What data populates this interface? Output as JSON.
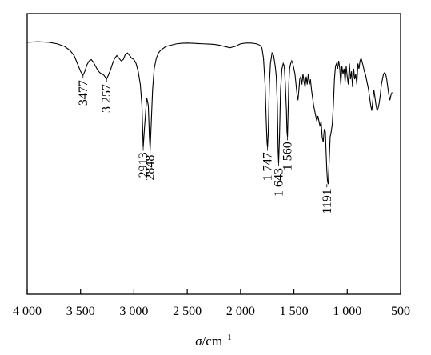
{
  "chart_data": {
    "type": "line",
    "title": "",
    "xlabel": {
      "symbol": "σ",
      "unit": "/cm",
      "exponent": "−1"
    },
    "ylabel": "",
    "xlim": [
      4000,
      500
    ],
    "ylim": [
      0,
      1
    ],
    "x_reversed": true,
    "grid": false,
    "legend": "none",
    "line_color": "#000000",
    "x_ticks": [
      4000,
      3500,
      3000,
      2500,
      2000,
      1500,
      1000,
      500
    ],
    "x_tick_labels": [
      "4 000",
      "3 500",
      "3 000",
      "2 500",
      "2 000",
      "1 500",
      "1 000",
      "500"
    ],
    "series": [
      {
        "x": [
          4000,
          3900,
          3800,
          3720,
          3650,
          3600,
          3560,
          3530,
          3500,
          3477,
          3460,
          3440,
          3420,
          3400,
          3380,
          3360,
          3340,
          3320,
          3300,
          3280,
          3257,
          3240,
          3220,
          3200,
          3180,
          3160,
          3140,
          3120,
          3100,
          3080,
          3060,
          3040,
          3020,
          3000,
          2980,
          2960,
          2940,
          2925,
          2913,
          2900,
          2880,
          2865,
          2855,
          2848,
          2840,
          2825,
          2810,
          2790,
          2770,
          2750,
          2700,
          2650,
          2600,
          2550,
          2500,
          2450,
          2400,
          2350,
          2300,
          2250,
          2200,
          2150,
          2100,
          2050,
          2000,
          1950,
          1900,
          1850,
          1820,
          1800,
          1785,
          1770,
          1760,
          1752,
          1747,
          1740,
          1730,
          1720,
          1705,
          1690,
          1675,
          1665,
          1655,
          1648,
          1643,
          1635,
          1625,
          1612,
          1600,
          1590,
          1580,
          1570,
          1565,
          1560,
          1555,
          1548,
          1540,
          1530,
          1520,
          1510,
          1500,
          1490,
          1480,
          1470,
          1462,
          1455,
          1445,
          1435,
          1425,
          1415,
          1405,
          1395,
          1385,
          1375,
          1365,
          1355,
          1345,
          1335,
          1325,
          1315,
          1305,
          1295,
          1285,
          1275,
          1265,
          1255,
          1245,
          1235,
          1225,
          1215,
          1205,
          1198,
          1191,
          1185,
          1178,
          1170,
          1160,
          1150,
          1140,
          1130,
          1120,
          1110,
          1100,
          1090,
          1080,
          1070,
          1060,
          1050,
          1040,
          1030,
          1020,
          1010,
          1000,
          990,
          980,
          970,
          960,
          950,
          940,
          930,
          920,
          910,
          900,
          890,
          880,
          870,
          860,
          850,
          840,
          830,
          820,
          810,
          800,
          790,
          780,
          770,
          760,
          750,
          740,
          730,
          720,
          710,
          700,
          690,
          680,
          670,
          660,
          650,
          640,
          630,
          620,
          610,
          600,
          590,
          580
        ],
        "y": [
          0.961,
          0.963,
          0.961,
          0.955,
          0.945,
          0.93,
          0.91,
          0.88,
          0.85,
          0.835,
          0.85,
          0.875,
          0.89,
          0.895,
          0.885,
          0.87,
          0.855,
          0.845,
          0.84,
          0.835,
          0.82,
          0.835,
          0.855,
          0.88,
          0.9,
          0.91,
          0.9,
          0.89,
          0.895,
          0.915,
          0.92,
          0.91,
          0.9,
          0.895,
          0.88,
          0.85,
          0.8,
          0.72,
          0.56,
          0.64,
          0.75,
          0.72,
          0.6,
          0.55,
          0.63,
          0.78,
          0.86,
          0.9,
          0.92,
          0.93,
          0.945,
          0.95,
          0.955,
          0.957,
          0.958,
          0.957,
          0.956,
          0.955,
          0.954,
          0.953,
          0.95,
          0.945,
          0.94,
          0.945,
          0.955,
          0.958,
          0.958,
          0.955,
          0.95,
          0.94,
          0.9,
          0.8,
          0.67,
          0.58,
          0.56,
          0.62,
          0.8,
          0.88,
          0.92,
          0.91,
          0.87,
          0.83,
          0.72,
          0.55,
          0.5,
          0.6,
          0.78,
          0.86,
          0.88,
          0.87,
          0.8,
          0.7,
          0.62,
          0.6,
          0.68,
          0.8,
          0.86,
          0.88,
          0.89,
          0.88,
          0.86,
          0.84,
          0.8,
          0.76,
          0.74,
          0.77,
          0.82,
          0.83,
          0.8,
          0.84,
          0.81,
          0.79,
          0.83,
          0.8,
          0.84,
          0.8,
          0.82,
          0.78,
          0.75,
          0.72,
          0.7,
          0.68,
          0.66,
          0.68,
          0.66,
          0.64,
          0.66,
          0.6,
          0.58,
          0.63,
          0.62,
          0.54,
          0.47,
          0.43,
          0.42,
          0.5,
          0.6,
          0.62,
          0.65,
          0.72,
          0.82,
          0.87,
          0.88,
          0.86,
          0.89,
          0.86,
          0.8,
          0.87,
          0.84,
          0.86,
          0.81,
          0.87,
          0.83,
          0.8,
          0.88,
          0.82,
          0.85,
          0.79,
          0.86,
          0.82,
          0.84,
          0.8,
          0.88,
          0.86,
          0.89,
          0.9,
          0.885,
          0.87,
          0.85,
          0.84,
          0.82,
          0.8,
          0.78,
          0.75,
          0.72,
          0.7,
          0.74,
          0.78,
          0.75,
          0.72,
          0.7,
          0.71,
          0.73,
          0.76,
          0.8,
          0.82,
          0.84,
          0.845,
          0.84,
          0.82,
          0.79,
          0.76,
          0.74,
          0.76,
          0.77
        ]
      }
    ],
    "annotations": [
      {
        "text": "3477",
        "x": 3477,
        "y": 0.835
      },
      {
        "text": "3 257",
        "x": 3257,
        "y": 0.82
      },
      {
        "text": "2913",
        "x": 2913,
        "y": 0.56
      },
      {
        "text": "2848",
        "x": 2848,
        "y": 0.55
      },
      {
        "text": "1 747",
        "x": 1747,
        "y": 0.56
      },
      {
        "text": "1 643",
        "x": 1643,
        "y": 0.5
      },
      {
        "text": "1 560",
        "x": 1560,
        "y": 0.6
      },
      {
        "text": "1191",
        "x": 1191,
        "y": 0.42
      }
    ]
  }
}
